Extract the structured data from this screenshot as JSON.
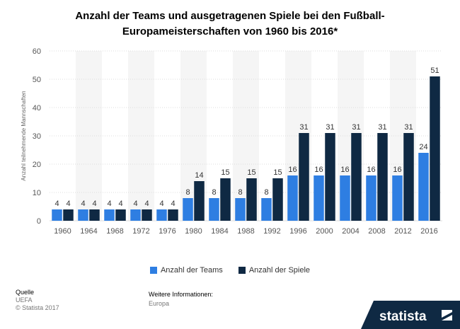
{
  "title_line1": "Anzahl der Teams und ausgetragenen Spiele bei den Fußball-",
  "title_line2": "Europameisterschaften von 1960 bis 2016*",
  "footer": {
    "source_heading": "Quelle",
    "source": "UEFA",
    "copyright": "© Statista 2017",
    "more_info_heading": "Weitere Informationen:",
    "more_info": "Europa"
  },
  "brand": "statista",
  "colors": {
    "teams": "#2e7ee2",
    "spiele": "#0f2943",
    "band": "#f5f5f5",
    "grid": "#dddddd"
  },
  "chart_data": {
    "type": "bar",
    "title": "Anzahl der Teams und ausgetragenen Spiele bei den Fußball-Europameisterschaften von 1960 bis 2016*",
    "ylabel": "Anzahl teilnehmende Mannschaften",
    "xlabel": "",
    "ylim": [
      0,
      60
    ],
    "yticks": [
      0,
      10,
      20,
      30,
      40,
      50,
      60
    ],
    "grid": true,
    "legend_position": "bottom",
    "categories": [
      "1960",
      "1964",
      "1968",
      "1972",
      "1976",
      "1980",
      "1984",
      "1988",
      "1992",
      "1996",
      "2000",
      "2004",
      "2008",
      "2012",
      "2016"
    ],
    "series": [
      {
        "name": "Anzahl der Teams",
        "values": [
          4,
          4,
          4,
          4,
          4,
          8,
          8,
          8,
          8,
          16,
          16,
          16,
          16,
          16,
          24
        ]
      },
      {
        "name": "Anzahl der Spiele",
        "values": [
          4,
          4,
          4,
          4,
          4,
          14,
          15,
          15,
          15,
          31,
          31,
          31,
          31,
          31,
          51
        ]
      }
    ]
  }
}
